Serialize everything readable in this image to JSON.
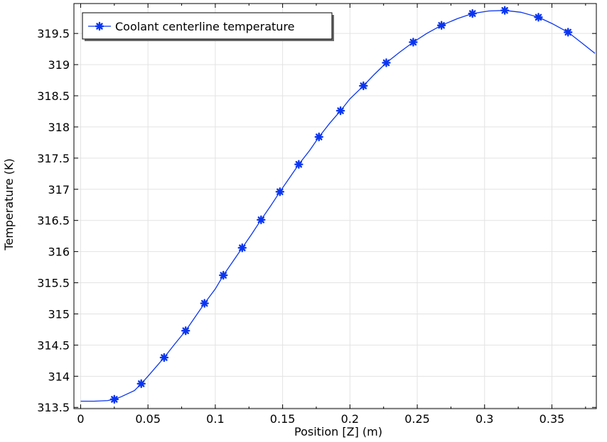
{
  "chart_data": {
    "type": "line",
    "xlabel": "Position [Z] (m)",
    "ylabel": "Temperature (K)",
    "xlim": [
      -0.005,
      0.383
    ],
    "ylim": [
      313.48,
      319.98
    ],
    "x_ticks": [
      0,
      0.05,
      0.1,
      0.15,
      0.2,
      0.25,
      0.3,
      0.35
    ],
    "x_tick_labels": [
      "0",
      "0.05",
      "0.1",
      "0.15",
      "0.2",
      "0.25",
      "0.3",
      "0.35"
    ],
    "y_ticks": [
      313.5,
      314,
      314.5,
      315,
      315.5,
      316,
      316.5,
      317,
      317.5,
      318,
      318.5,
      319,
      319.5
    ],
    "y_tick_labels": [
      "313.5",
      "314",
      "314.5",
      "315",
      "315.5",
      "316",
      "316.5",
      "317",
      "317.5",
      "318",
      "318.5",
      "319",
      "319.5"
    ],
    "grid": true,
    "legend_position": "top-left",
    "series": [
      {
        "name": "Coolant centerline temperature",
        "color": "#0a35f0",
        "marker": "asterisk",
        "line_x": [
          0,
          0.01,
          0.02,
          0.025,
          0.03,
          0.04,
          0.045,
          0.05,
          0.062,
          0.07,
          0.078,
          0.085,
          0.092,
          0.1,
          0.106,
          0.113,
          0.12,
          0.127,
          0.134,
          0.141,
          0.148,
          0.155,
          0.162,
          0.17,
          0.177,
          0.185,
          0.193,
          0.2,
          0.21,
          0.218,
          0.227,
          0.237,
          0.247,
          0.257,
          0.268,
          0.28,
          0.291,
          0.303,
          0.315,
          0.327,
          0.34,
          0.35,
          0.362,
          0.372,
          0.382
        ],
        "line_y": [
          313.6,
          313.6,
          313.61,
          313.63,
          313.67,
          313.77,
          313.88,
          314.0,
          314.3,
          314.52,
          314.73,
          314.95,
          315.17,
          315.4,
          315.62,
          315.84,
          316.06,
          316.28,
          316.51,
          316.73,
          316.96,
          317.18,
          317.4,
          317.62,
          317.84,
          318.06,
          318.26,
          318.45,
          318.66,
          318.84,
          319.03,
          319.2,
          319.36,
          319.5,
          319.63,
          319.74,
          319.82,
          319.86,
          319.87,
          319.84,
          319.76,
          319.66,
          319.52,
          319.35,
          319.18
        ],
        "marker_x": [
          0.025,
          0.045,
          0.062,
          0.078,
          0.092,
          0.106,
          0.12,
          0.134,
          0.148,
          0.162,
          0.177,
          0.193,
          0.21,
          0.227,
          0.247,
          0.268,
          0.291,
          0.315,
          0.34,
          0.362
        ],
        "marker_y": [
          313.63,
          313.88,
          314.3,
          314.73,
          315.17,
          315.62,
          316.06,
          316.51,
          316.96,
          317.4,
          317.84,
          318.26,
          318.66,
          319.03,
          319.36,
          319.63,
          319.82,
          319.87,
          319.76,
          319.52
        ]
      }
    ]
  }
}
